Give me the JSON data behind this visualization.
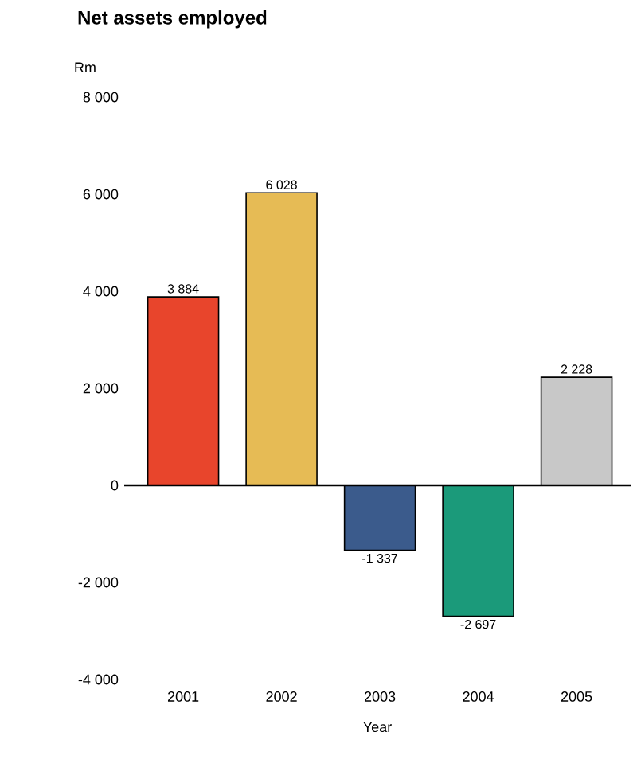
{
  "chart_data": {
    "type": "bar",
    "title": "Net assets employed",
    "ylabel": "Rm",
    "xlabel": "Year",
    "categories": [
      "2001",
      "2002",
      "2003",
      "2004",
      "2005"
    ],
    "values": [
      3884,
      6028,
      -1337,
      -2697,
      2228
    ],
    "value_labels": [
      "3 884",
      "6 028",
      "-1 337",
      "-2 697",
      "2 228"
    ],
    "colors": [
      "#e8452c",
      "#e6bb55",
      "#3b5b8c",
      "#1b9a7a",
      "#c8c8c8"
    ],
    "ylim": [
      -4000,
      8000
    ],
    "yticks": [
      {
        "value": -4000,
        "label": "-4 000"
      },
      {
        "value": -2000,
        "label": "-2 000"
      },
      {
        "value": 0,
        "label": "0"
      },
      {
        "value": 2000,
        "label": "2 000"
      },
      {
        "value": 4000,
        "label": "4 000"
      },
      {
        "value": 6000,
        "label": "6 000"
      },
      {
        "value": 8000,
        "label": "8 000"
      }
    ]
  }
}
